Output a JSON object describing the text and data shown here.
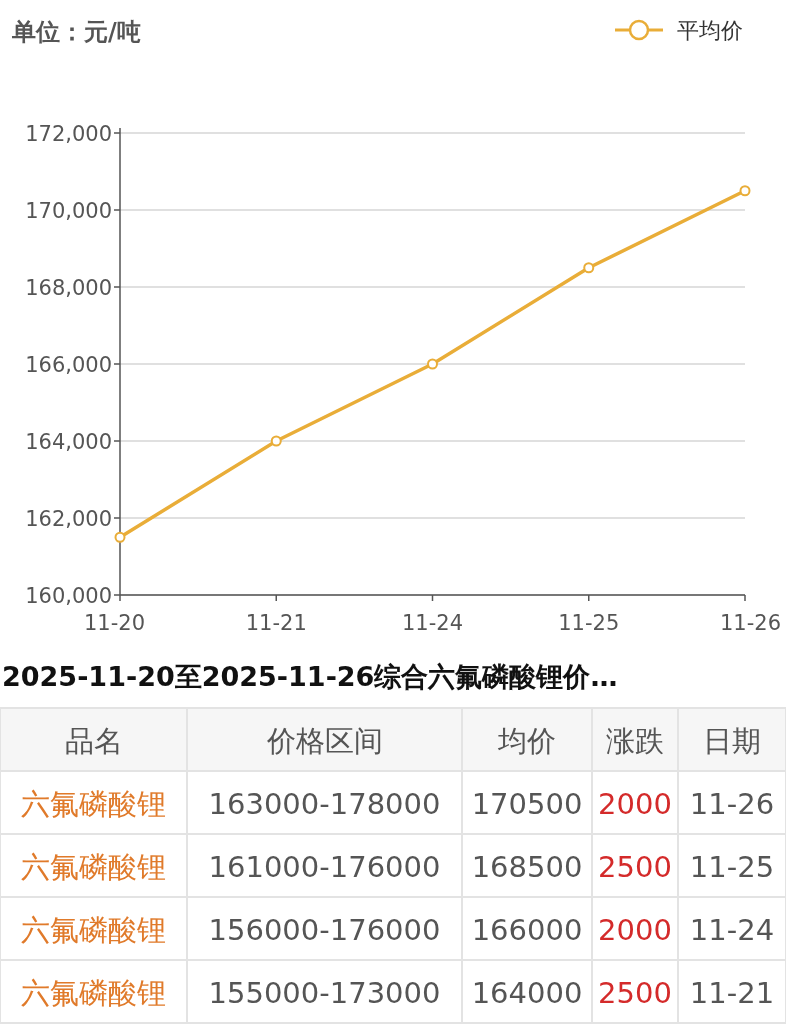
{
  "chart_data": {
    "type": "line",
    "ylabel": "单位：元/吨",
    "categories": [
      "11-20",
      "11-21",
      "11-24",
      "11-25",
      "11-26"
    ],
    "series": [
      {
        "name": "平均价",
        "color": "#e9ad38",
        "values": [
          161500,
          164000,
          166000,
          168500,
          170500
        ]
      }
    ],
    "ylim": [
      160000,
      172000
    ],
    "yticks": [
      {
        "value": 160000,
        "label": "160,000"
      },
      {
        "value": 162000,
        "label": "162,000"
      },
      {
        "value": 164000,
        "label": "164,000"
      },
      {
        "value": 166000,
        "label": "166,000"
      },
      {
        "value": 168000,
        "label": "168,000"
      },
      {
        "value": 170000,
        "label": "170,000"
      },
      {
        "value": 172000,
        "label": "172,000"
      }
    ],
    "grid": "y",
    "legend": "top right",
    "marker": "circle",
    "line_style": "solid",
    "annotations": [
      "2025-11-20至2025-11-26综合六氟磷酸锂价…",
      "品名",
      "价格区间",
      "均价",
      "涨跌",
      "日期",
      "六氟磷酸锂",
      "163000-178000",
      "170500",
      "2000",
      "11-26",
      "六氟磷酸锂",
      "161000-176000",
      "168500",
      "2500",
      "11-25",
      "六氟磷酸锂",
      "156000-176000",
      "166000",
      "2000",
      "11-24",
      "六氟磷酸锂",
      "155000-173000",
      "164000",
      "2500",
      "11-21"
    ]
  }
}
